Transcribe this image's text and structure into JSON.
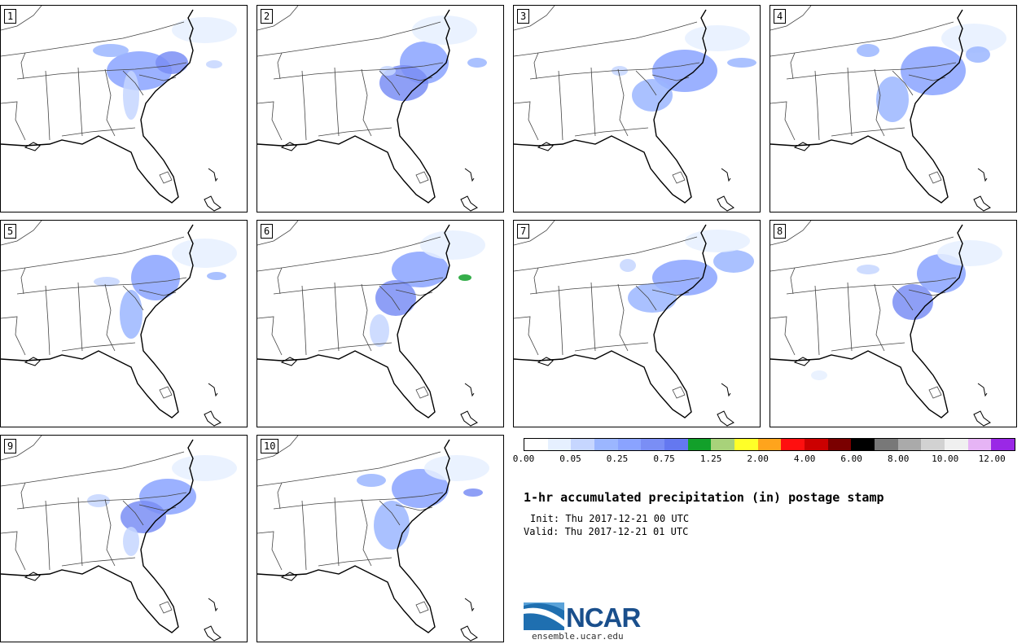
{
  "panels": [
    {
      "id": "1",
      "member": 1
    },
    {
      "id": "2",
      "member": 2
    },
    {
      "id": "3",
      "member": 3
    },
    {
      "id": "4",
      "member": 4
    },
    {
      "id": "5",
      "member": 5
    },
    {
      "id": "6",
      "member": 6
    },
    {
      "id": "7",
      "member": 7
    },
    {
      "id": "8",
      "member": 8
    },
    {
      "id": "9",
      "member": 9
    },
    {
      "id": "10",
      "member": 10
    }
  ],
  "colorbar": {
    "colors": [
      "#ffffff",
      "#e6f0ff",
      "#c6d6ff",
      "#9bb6ff",
      "#8aa3ff",
      "#7a8ef5",
      "#6478f0",
      "#12a02a",
      "#a8d27a",
      "#ffff28",
      "#ffa41c",
      "#ff0f0f",
      "#cc0000",
      "#7a0000",
      "#000000",
      "#787878",
      "#aaaaaa",
      "#d2d2d2",
      "#f0f0f0",
      "#e6b4f5",
      "#9a28e6"
    ],
    "tick_labels": [
      "0.00",
      "0.05",
      "0.25",
      "0.75",
      "1.25",
      "2.00",
      "4.00",
      "6.00",
      "8.00",
      "10.00",
      "12.00"
    ]
  },
  "title": "1-hr accumulated precipitation (in) postage stamp",
  "init": "Init: Thu 2017-12-21 00 UTC",
  "valid": "Valid: Thu 2017-12-21 01 UTC",
  "logo": {
    "name": "NCAR",
    "url": "ensemble.ucar.edu"
  }
}
